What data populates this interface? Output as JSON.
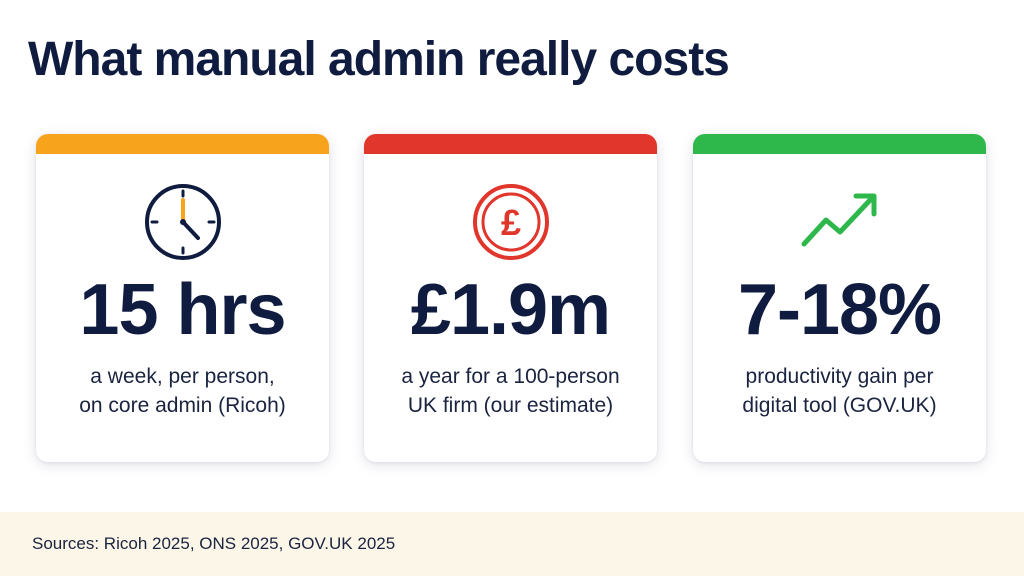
{
  "slide": {
    "title": "What manual admin really costs"
  },
  "cards": [
    {
      "icon": "clock-icon",
      "accent": "#f7a31c",
      "value": "15 hrs",
      "desc_line1": "a week, per person,",
      "desc_line2": "on core admin (Ricoh)"
    },
    {
      "icon": "pound-coin-icon",
      "accent": "#e0362c",
      "value": "£1.9m",
      "desc_line1": "a year for a 100-person",
      "desc_line2": "UK firm (our estimate)"
    },
    {
      "icon": "trend-up-icon",
      "accent": "#2eb84b",
      "value": "7-18%",
      "desc_line1": "productivity gain per",
      "desc_line2": "digital tool (GOV.UK)"
    }
  ],
  "footer": {
    "sources": "Sources: Ricoh 2025, ONS 2025, GOV.UK 2025"
  }
}
